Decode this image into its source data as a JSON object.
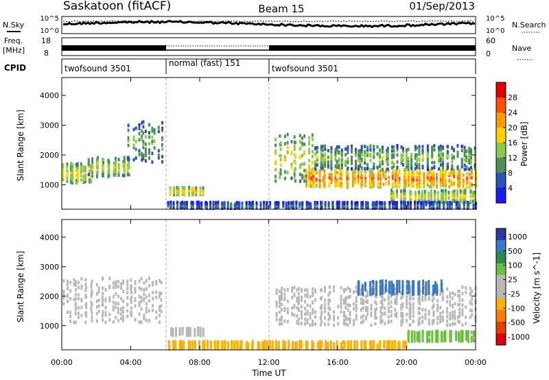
{
  "header": {
    "station": "Saskatoon (fitACF)",
    "beam": "Beam 15",
    "date": "01/Sep/2013"
  },
  "top_panels": {
    "nsky_label": "N.Sky",
    "nsearch_label": "N.Search",
    "nsky_ticks": [
      "10^5",
      "10^0"
    ],
    "nsearch_ticks": [
      "10^5",
      "10^0"
    ],
    "freq_label": "Freq.",
    "freq_unit": "[MHz]",
    "freq_ticks": [
      "18",
      "8"
    ],
    "nave_label": "Nave",
    "nave_ticks": [
      "60",
      "0"
    ],
    "cpid_label": "CPID",
    "cpid_segments": [
      {
        "label": "twofsound 3501",
        "start_h": 0,
        "end_h": 6
      },
      {
        "label": "normal (fast) 151",
        "start_h": 6,
        "end_h": 12
      },
      {
        "label": "twofsound 3501",
        "start_h": 12,
        "end_h": 24
      }
    ]
  },
  "chart_data": [
    {
      "type": "heatmap",
      "title": "",
      "xlabel": "",
      "ylabel": "Slant Range [km]",
      "x_ticks": [
        "00:00",
        "04:00",
        "08:00",
        "12:00",
        "16:00",
        "20:00",
        "00:00"
      ],
      "xlim": [
        0,
        24
      ],
      "y_ticks": [
        1000,
        2000,
        3000,
        4000
      ],
      "ylim": [
        180,
        4600
      ],
      "colorbar_label": "Power [dB]",
      "colorbar_ticks": [
        4,
        8,
        12,
        16,
        20,
        24,
        28
      ],
      "colorbar_range": [
        0,
        32
      ],
      "colorbar_colors": [
        "#1a1aff",
        "#2a52b8",
        "#4e8e5a",
        "#8cc84a",
        "#ffd000",
        "#ff9a00",
        "#ff5000",
        "#e00000"
      ],
      "echo_regions": [
        {
          "t0": 0,
          "t1": 1.8,
          "r0": 1050,
          "r1": 1700,
          "level": 14
        },
        {
          "t0": 1.5,
          "t1": 4.0,
          "r0": 1250,
          "r1": 1900,
          "level": 13
        },
        {
          "t0": 3.8,
          "t1": 5.8,
          "r0": 1700,
          "r1": 3100,
          "level": 9
        },
        {
          "t0": 6.2,
          "t1": 8.2,
          "r0": 650,
          "r1": 900,
          "level": 16
        },
        {
          "t0": 12.3,
          "t1": 14.5,
          "r0": 1100,
          "r1": 2700,
          "level": 13
        },
        {
          "t0": 14.0,
          "t1": 24,
          "r0": 900,
          "r1": 1500,
          "level": 20
        },
        {
          "t0": 14.5,
          "t1": 24,
          "r0": 1500,
          "r1": 2300,
          "level": 10
        },
        {
          "t0": 19.0,
          "t1": 24,
          "r0": 400,
          "r1": 800,
          "level": 14
        },
        {
          "t0": 6.0,
          "t1": 24,
          "r0": 200,
          "r1": 400,
          "level": 6
        }
      ]
    },
    {
      "type": "heatmap",
      "title": "",
      "xlabel": "Time UT",
      "ylabel": "Slant Range [km]",
      "x_ticks": [
        "00:00",
        "04:00",
        "08:00",
        "12:00",
        "16:00",
        "20:00",
        "00:00"
      ],
      "xlim": [
        0,
        24
      ],
      "y_ticks": [
        1000,
        2000,
        3000,
        4000
      ],
      "ylim": [
        180,
        4600
      ],
      "colorbar_label": "Velocity [m s^-1]",
      "colorbar_ticks": [
        1000,
        500,
        100,
        25,
        -25,
        -100,
        -500,
        -1000
      ],
      "colorbar_colors": [
        "#2a3aa0",
        "#3a7ac0",
        "#2e8a4e",
        "#6cc040",
        "#b8b8b8",
        "#b8b8b8",
        "#ffb000",
        "#ff7a00",
        "#e04000",
        "#e00000"
      ],
      "echo_regions": [
        {
          "t0": 0,
          "t1": 5.8,
          "r0": 1100,
          "r1": 2600,
          "level": 0
        },
        {
          "t0": 6.2,
          "t1": 8.2,
          "r0": 650,
          "r1": 900,
          "level": 0
        },
        {
          "t0": 12.3,
          "t1": 24,
          "r0": 1000,
          "r1": 2300,
          "level": 0
        },
        {
          "t0": 20.0,
          "t1": 24,
          "r0": 450,
          "r1": 800,
          "level": 60
        },
        {
          "t0": 17.0,
          "t1": 22.0,
          "r0": 2050,
          "r1": 2500,
          "level": 300
        },
        {
          "t0": 6.0,
          "t1": 20.0,
          "r0": 200,
          "r1": 450,
          "level": -80
        }
      ]
    }
  ]
}
